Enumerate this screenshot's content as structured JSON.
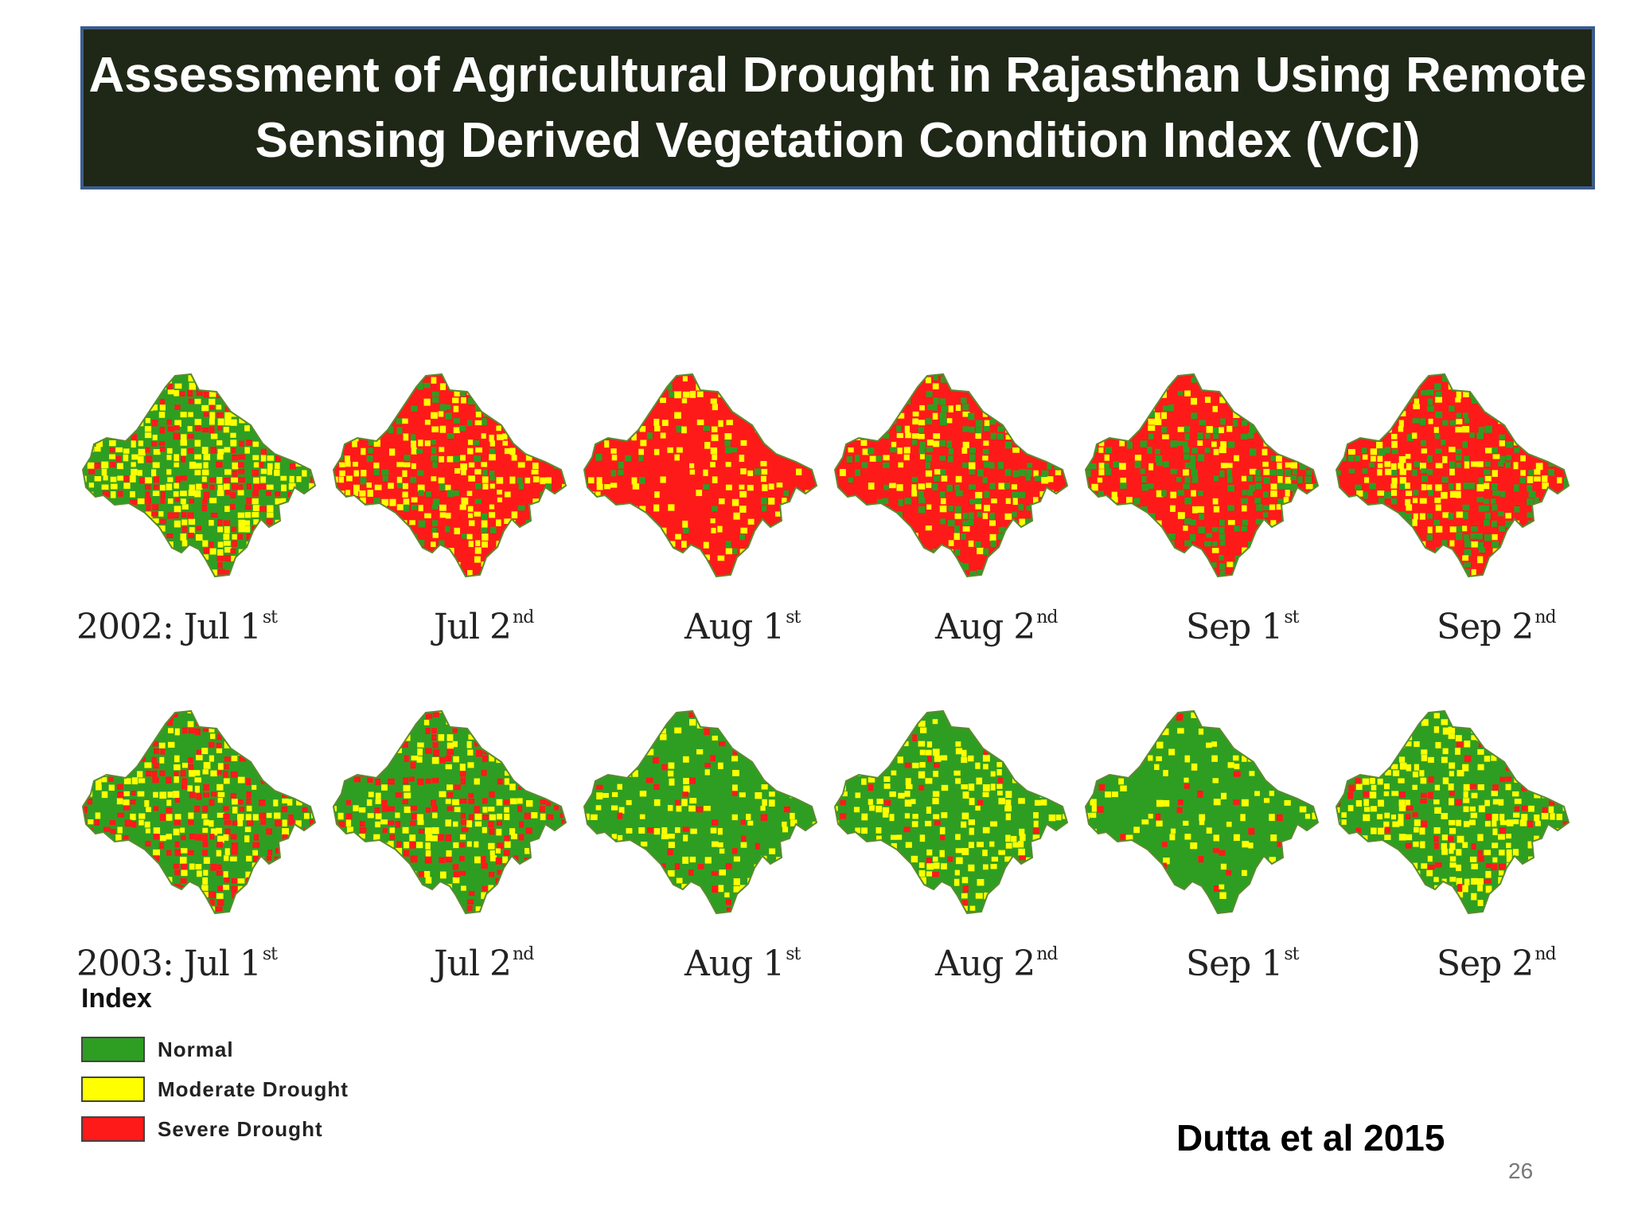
{
  "title": {
    "line1": "Assessment of Agricultural Drought in Rajasthan Using Remote",
    "line2": "Sensing Derived Vegetation Condition Index (VCI)"
  },
  "rows": [
    {
      "year": "2002",
      "maps": [
        {
          "prefix": "2002:  ",
          "period": "Jul 1",
          "sup": "st",
          "normal": 0.4,
          "moderate": 0.35,
          "severe": 0.25
        },
        {
          "prefix": "",
          "period": "Jul 2",
          "sup": "nd",
          "normal": 0.15,
          "moderate": 0.3,
          "severe": 0.55
        },
        {
          "prefix": "",
          "period": "Aug 1",
          "sup": "st",
          "normal": 0.05,
          "moderate": 0.2,
          "severe": 0.75
        },
        {
          "prefix": "",
          "period": "Aug 2",
          "sup": "nd",
          "normal": 0.25,
          "moderate": 0.15,
          "severe": 0.6
        },
        {
          "prefix": "",
          "period": "Sep 1",
          "sup": "st",
          "normal": 0.3,
          "moderate": 0.15,
          "severe": 0.55
        },
        {
          "prefix": "",
          "period": "Sep 2",
          "sup": "nd",
          "normal": 0.25,
          "moderate": 0.2,
          "severe": 0.55
        }
      ]
    },
    {
      "year": "2003",
      "maps": [
        {
          "prefix": "2003:  ",
          "period": "Jul 1",
          "sup": "st",
          "normal": 0.45,
          "moderate": 0.25,
          "severe": 0.3
        },
        {
          "prefix": "",
          "period": "Jul 2",
          "sup": "nd",
          "normal": 0.5,
          "moderate": 0.25,
          "severe": 0.25
        },
        {
          "prefix": "",
          "period": "Aug 1",
          "sup": "st",
          "normal": 0.75,
          "moderate": 0.18,
          "severe": 0.07
        },
        {
          "prefix": "",
          "period": "Aug 2",
          "sup": "nd",
          "normal": 0.65,
          "moderate": 0.3,
          "severe": 0.05
        },
        {
          "prefix": "",
          "period": "Sep 1",
          "sup": "st",
          "normal": 0.8,
          "moderate": 0.15,
          "severe": 0.05
        },
        {
          "prefix": "",
          "period": "Sep 2",
          "sup": "nd",
          "normal": 0.55,
          "moderate": 0.35,
          "severe": 0.1
        }
      ]
    }
  ],
  "legend": {
    "title": "Index",
    "items": [
      {
        "label": "Normal",
        "color": "#2e9e22"
      },
      {
        "label": "Moderate Drought",
        "color": "#ffff00"
      },
      {
        "label": "Severe Drought",
        "color": "#ff1a1a"
      }
    ]
  },
  "citation": "Dutta et al 2015",
  "page_number": "26"
}
